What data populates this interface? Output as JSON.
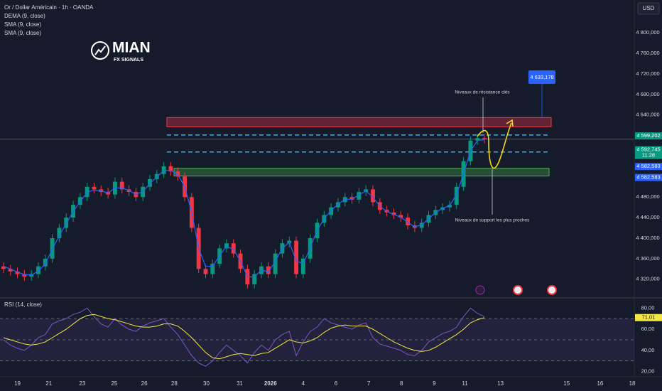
{
  "logo": {
    "name": "MIAN",
    "tagline": "FX SIGNALS"
  },
  "chart_data": [
    {
      "type": "candlestick",
      "title": "Or / Dollar Américain · 1h · OANDA",
      "legend": [
        "DEMA (9, close)",
        "SMA (9, close)",
        "SMA (9, close)"
      ],
      "currency": "USD",
      "up_color": "#089981",
      "down_color": "#f23645",
      "xlim": [
        -0.5,
        90.5
      ],
      "xticks": [
        {
          "value": 2.0,
          "label": "19"
        },
        {
          "value": 6.5,
          "label": "21"
        },
        {
          "value": 11.3,
          "label": "23"
        },
        {
          "value": 15.9,
          "label": "25"
        },
        {
          "value": 20.2,
          "label": "26"
        },
        {
          "value": 24.5,
          "label": "28"
        },
        {
          "value": 29.1,
          "label": "30"
        },
        {
          "value": 33.9,
          "label": "31"
        },
        {
          "value": 38.3,
          "label": "2026"
        },
        {
          "value": 43.0,
          "label": "4"
        },
        {
          "value": 47.7,
          "label": "6"
        },
        {
          "value": 52.4,
          "label": "7"
        },
        {
          "value": 57.1,
          "label": "8"
        },
        {
          "value": 61.8,
          "label": "9"
        },
        {
          "value": 66.2,
          "label": "11"
        },
        {
          "value": 71.3,
          "label": "13"
        },
        {
          "value": 80.8,
          "label": "15"
        },
        {
          "value": 85.6,
          "label": "16"
        },
        {
          "value": 90.2,
          "label": "18"
        }
      ],
      "ylim": [
        4285,
        4864
      ],
      "yticks": [
        {
          "value": 4320,
          "label": "4 320,000"
        },
        {
          "value": 4360,
          "label": "4 360,000"
        },
        {
          "value": 4400,
          "label": "4 400,000"
        },
        {
          "value": 4440,
          "label": "4 440,000"
        },
        {
          "value": 4480,
          "label": "4 480,000"
        },
        {
          "value": 4520,
          "label": "4 520,000"
        },
        {
          "value": 4560,
          "label": "4 560,000"
        },
        {
          "value": 4600,
          "label": "4 600,000"
        },
        {
          "value": 4640,
          "label": "4 640,000"
        },
        {
          "value": 4680,
          "label": "4 680,000"
        },
        {
          "value": 4720,
          "label": "4 720,000"
        },
        {
          "value": 4760,
          "label": "4 760,000"
        },
        {
          "value": 4800,
          "label": "4 800,000"
        }
      ],
      "open": [
        4345,
        4340,
        4335,
        4330,
        4325,
        4330,
        4345,
        4360,
        4400,
        4420,
        4440,
        4465,
        4480,
        4500,
        4495,
        4490,
        4485,
        4510,
        4495,
        4490,
        4480,
        4500,
        4515,
        4525,
        4540,
        4530,
        4520,
        4480,
        4420,
        4340,
        4330,
        4350,
        4380,
        4390,
        4370,
        4340,
        4310,
        4330,
        4345,
        4330,
        4370,
        4390,
        4395,
        4330,
        4360,
        4400,
        4430,
        4445,
        4460,
        4470,
        4480,
        4475,
        4490,
        4495,
        4470,
        4455,
        4450,
        4445,
        4440,
        4425,
        4420,
        4430,
        4445,
        4455,
        4460,
        4465,
        4500,
        4550,
        4590,
        4595
      ],
      "high": [
        4353,
        4348,
        4343,
        4338,
        4338,
        4353,
        4368,
        4408,
        4428,
        4448,
        4473,
        4488,
        4508,
        4508,
        4503,
        4498,
        4518,
        4518,
        4503,
        4498,
        4508,
        4523,
        4533,
        4548,
        4548,
        4538,
        4528,
        4488,
        4428,
        4348,
        4358,
        4388,
        4398,
        4398,
        4378,
        4348,
        4338,
        4353,
        4353,
        4378,
        4398,
        4403,
        4403,
        4368,
        4408,
        4438,
        4453,
        4468,
        4478,
        4488,
        4488,
        4498,
        4503,
        4503,
        4478,
        4463,
        4458,
        4453,
        4448,
        4433,
        4438,
        4453,
        4463,
        4468,
        4473,
        4508,
        4558,
        4598,
        4603,
        4603
      ],
      "low": [
        4332,
        4327,
        4322,
        4317,
        4317,
        4322,
        4337,
        4352,
        4392,
        4412,
        4432,
        4457,
        4472,
        4487,
        4482,
        4477,
        4477,
        4487,
        4482,
        4472,
        4472,
        4492,
        4507,
        4517,
        4522,
        4512,
        4472,
        4412,
        4332,
        4322,
        4322,
        4342,
        4372,
        4362,
        4332,
        4302,
        4302,
        4322,
        4322,
        4322,
        4362,
        4382,
        4322,
        4322,
        4352,
        4392,
        4422,
        4437,
        4452,
        4462,
        4467,
        4467,
        4482,
        4462,
        4447,
        4442,
        4437,
        4432,
        4417,
        4412,
        4412,
        4422,
        4437,
        4447,
        4452,
        4457,
        4492,
        4542,
        4582,
        4585
      ],
      "close": [
        4340,
        4335,
        4330,
        4325,
        4330,
        4345,
        4360,
        4400,
        4420,
        4440,
        4465,
        4480,
        4500,
        4495,
        4490,
        4485,
        4510,
        4495,
        4490,
        4480,
        4500,
        4515,
        4525,
        4540,
        4530,
        4520,
        4480,
        4420,
        4340,
        4330,
        4350,
        4380,
        4390,
        4370,
        4340,
        4310,
        4330,
        4345,
        4330,
        4370,
        4390,
        4395,
        4330,
        4360,
        4400,
        4430,
        4445,
        4460,
        4470,
        4480,
        4475,
        4490,
        4495,
        4470,
        4455,
        4450,
        4445,
        4440,
        4425,
        4420,
        4430,
        4445,
        4455,
        4460,
        4465,
        4500,
        4550,
        4590,
        4595,
        4593
      ],
      "overlay": {
        "color": "#2962ff",
        "values": [
          4345,
          4340,
          4334,
          4329,
          4328,
          4336,
          4350,
          4378,
          4405,
          4428,
          4452,
          4471,
          4489,
          4494,
          4492,
          4488,
          4498,
          4498,
          4493,
          4485,
          4491,
          4506,
          4519,
          4532,
          4532,
          4524,
          4500,
          4451,
          4380,
          4345,
          4345,
          4366,
          4384,
          4378,
          4355,
          4325,
          4324,
          4338,
          4334,
          4355,
          4380,
          4392,
          4356,
          4350,
          4381,
          4415,
          4438,
          4454,
          4466,
          4476,
          4476,
          4484,
          4492,
          4480,
          4462,
          4452,
          4446,
          4441,
          4431,
          4422,
          4426,
          4438,
          4450,
          4458,
          4463,
          4485,
          4525,
          4570,
          4590,
          4592
        ]
      },
      "resistance_zone": [
        4617,
        4635
      ],
      "support_zone": [
        4521,
        4536
      ],
      "dashed_levels": [
        4601,
        4568
      ],
      "target": {
        "value": 4633.178,
        "label": "4 633,178"
      },
      "annotations": [
        "Niveaux de résistance clés",
        "Niveaux de support les plus proches"
      ],
      "price_tags": [
        {
          "value": 4599.202,
          "label": "4 599,202",
          "color": "#089981"
        },
        {
          "value": 4592.745,
          "label": "4 592,745",
          "countdown": "11:28",
          "color": "#089981"
        },
        {
          "value": 4582.583,
          "label": "4 582,583",
          "color": "#2962ff"
        },
        {
          "value": 4582.583,
          "label": "4 582,583",
          "color": "#2962ff"
        }
      ]
    },
    {
      "type": "line",
      "title": "RSI (14, close)",
      "ylim": [
        15,
        89
      ],
      "yticks": [
        {
          "value": 20,
          "label": "20,00"
        },
        {
          "value": 40,
          "label": "40,00"
        },
        {
          "value": 60,
          "label": "60,00"
        },
        {
          "value": 80,
          "label": "80,00"
        }
      ],
      "levels": [
        30,
        50,
        70
      ],
      "series": [
        {
          "color": "#7e57c2",
          "values": [
            50,
            45,
            42,
            40,
            45,
            52,
            55,
            65,
            68,
            70,
            74,
            76,
            80,
            72,
            65,
            62,
            70,
            64,
            60,
            58,
            63,
            66,
            68,
            70,
            62,
            55,
            45,
            35,
            28,
            25,
            30,
            38,
            45,
            40,
            35,
            28,
            38,
            45,
            40,
            50,
            55,
            58,
            35,
            48,
            58,
            62,
            70,
            66,
            64,
            62,
            60,
            64,
            66,
            52,
            46,
            44,
            42,
            40,
            36,
            35,
            40,
            48,
            52,
            56,
            58,
            62,
            72,
            80,
            75,
            72
          ]
        },
        {
          "color": "#f5e642",
          "values": [
            52,
            50,
            48,
            46,
            45,
            46,
            48,
            52,
            56,
            60,
            65,
            70,
            73,
            74,
            72,
            70,
            69,
            67,
            65,
            63,
            62,
            62,
            63,
            65,
            65,
            63,
            58,
            52,
            45,
            38,
            33,
            32,
            34,
            36,
            37,
            36,
            35,
            37,
            38,
            42,
            46,
            50,
            48,
            47,
            49,
            52,
            57,
            61,
            63,
            64,
            63,
            63,
            63,
            60,
            56,
            52,
            48,
            45,
            42,
            40,
            39,
            40,
            43,
            47,
            51,
            55,
            60,
            66,
            69,
            71
          ]
        }
      ],
      "price_tag": {
        "value": 71.01,
        "label": "71,01"
      }
    }
  ]
}
